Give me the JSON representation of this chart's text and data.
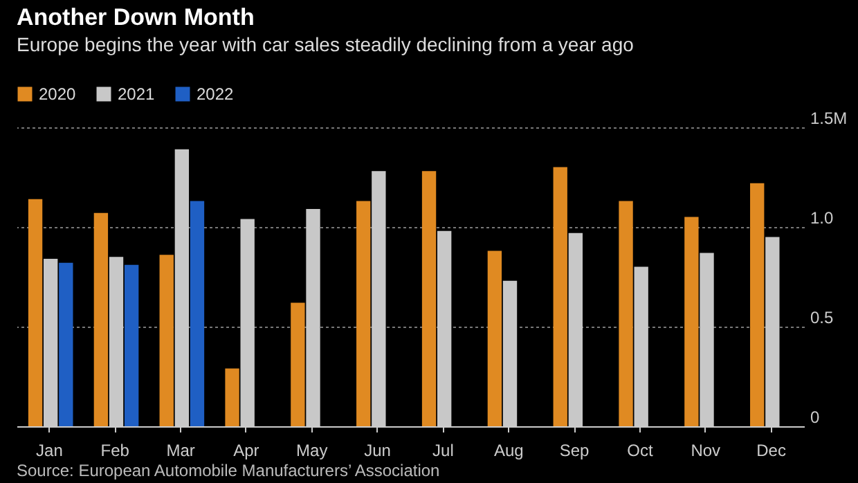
{
  "chart_data": {
    "type": "bar",
    "title": "Another Down Month",
    "subtitle": "Europe begins the year with car sales steadily declining from a year ago",
    "categories": [
      "Jan",
      "Feb",
      "Mar",
      "Apr",
      "May",
      "Jun",
      "Jul",
      "Aug",
      "Sep",
      "Oct",
      "Nov",
      "Dec"
    ],
    "series": [
      {
        "name": "2020",
        "color": "#e08a22",
        "values": [
          1.14,
          1.07,
          0.86,
          0.29,
          0.62,
          1.13,
          1.28,
          0.88,
          1.3,
          1.13,
          1.05,
          1.22
        ]
      },
      {
        "name": "2021",
        "color": "#c8c8c8",
        "values": [
          0.84,
          0.85,
          1.39,
          1.04,
          1.09,
          1.28,
          0.98,
          0.73,
          0.97,
          0.8,
          0.87,
          0.95
        ]
      },
      {
        "name": "2022",
        "color": "#1f5fc4",
        "values": [
          0.82,
          0.81,
          1.13,
          null,
          null,
          null,
          null,
          null,
          null,
          null,
          null,
          null
        ]
      }
    ],
    "ylim": [
      0,
      1.5
    ],
    "yticks": [
      0,
      0.5,
      {
        "value": 1,
        "label": "1.0"
      },
      {
        "value": 1.5,
        "label": "1.5M"
      }
    ],
    "grid": "y",
    "legend": "top left",
    "annotations": [
      "Source: European Automobile Manufacturers’ Association"
    ]
  }
}
